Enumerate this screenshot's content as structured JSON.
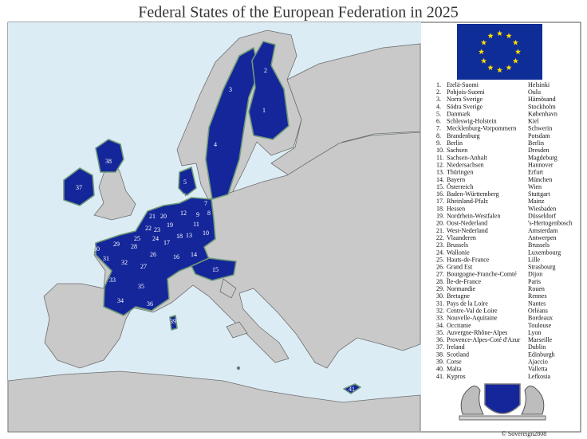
{
  "title": "Federal States of the European Federation in 2025",
  "states": [
    {
      "number": "1.",
      "name": "Etelä-Suomi",
      "capital": "Helsinki"
    },
    {
      "number": "2.",
      "name": "Pohjois-Suomi",
      "capital": "Oulu"
    },
    {
      "number": "3.",
      "name": "Norra Sverige",
      "capital": "Härnösand"
    },
    {
      "number": "4.",
      "name": "Södra Sverige",
      "capital": "Stockholm"
    },
    {
      "number": "5.",
      "name": "Danmark",
      "capital": "København"
    },
    {
      "number": "6.",
      "name": "Schleswig-Holstein",
      "capital": "Kiel"
    },
    {
      "number": "7.",
      "name": "Mecklenburg-Vorpommern",
      "capital": "Schwerin"
    },
    {
      "number": "8.",
      "name": "Brandenburg",
      "capital": "Potsdam"
    },
    {
      "number": "9.",
      "name": "Berlin",
      "capital": "Berlin"
    },
    {
      "number": "10.",
      "name": "Sachsen",
      "capital": "Dresden"
    },
    {
      "number": "11.",
      "name": "Sachsen-Anhalt",
      "capital": "Magdeburg"
    },
    {
      "number": "12.",
      "name": "Niedersachsen",
      "capital": "Hannover"
    },
    {
      "number": "13.",
      "name": "Thüringen",
      "capital": "Erfurt"
    },
    {
      "number": "14.",
      "name": "Bayern",
      "capital": "München"
    },
    {
      "number": "15.",
      "name": "Österreich",
      "capital": "Wien"
    },
    {
      "number": "16.",
      "name": "Baden-Württemberg",
      "capital": "Stuttgart"
    },
    {
      "number": "17.",
      "name": "Rheinland-Pfalz",
      "capital": "Mainz"
    },
    {
      "number": "18.",
      "name": "Hessen",
      "capital": "Wiesbaden"
    },
    {
      "number": "19.",
      "name": "Nordrhein-Westfalen",
      "capital": "Düsseldorf"
    },
    {
      "number": "20.",
      "name": "Oost-Nederland",
      "capital": "'s-Hertogenbosch"
    },
    {
      "number": "21.",
      "name": "West-Nederland",
      "capital": "Amsterdam"
    },
    {
      "number": "22.",
      "name": "Vlaanderen",
      "capital": "Antwerpen"
    },
    {
      "number": "23.",
      "name": "Brussels",
      "capital": "Brussels"
    },
    {
      "number": "24.",
      "name": "Wallonie",
      "capital": "Luxembourg"
    },
    {
      "number": "25.",
      "name": "Hauts-de-France",
      "capital": "Lille"
    },
    {
      "number": "26.",
      "name": "Grand Est",
      "capital": "Strasbourg"
    },
    {
      "number": "27.",
      "name": "Bourgogne-Franche-Comté",
      "capital": "Dijon"
    },
    {
      "number": "28.",
      "name": "Île-de-France",
      "capital": "Paris"
    },
    {
      "number": "29.",
      "name": "Normandie",
      "capital": "Rouen"
    },
    {
      "number": "30.",
      "name": "Bretagne",
      "capital": "Rennes"
    },
    {
      "number": "31.",
      "name": "Pays de la Loire",
      "capital": "Nantes"
    },
    {
      "number": "32.",
      "name": "Centre-Val de Loire",
      "capital": "Orléans"
    },
    {
      "number": "33.",
      "name": "Nouvelle-Aquitaine",
      "capital": "Bordeaux"
    },
    {
      "number": "34.",
      "name": "Occitanie",
      "capital": "Toulouse"
    },
    {
      "number": "35.",
      "name": "Auvergne-Rhône-Alpes",
      "capital": "Lyon"
    },
    {
      "number": "36.",
      "name": "Provence-Alpes-Coté d'Azur",
      "capital": "Marseille"
    },
    {
      "number": "37.",
      "name": "Ireland",
      "capital": "Dublin"
    },
    {
      "number": "38.",
      "name": "Scotland",
      "capital": "Edinburgh"
    },
    {
      "number": "39.",
      "name": "Corse",
      "capital": "Ajaccio"
    },
    {
      "number": "40.",
      "name": "Malta",
      "capital": "Valletta"
    },
    {
      "number": "41.",
      "name": "Kypros",
      "capital": "Lefkosia"
    }
  ],
  "map_labels": [
    "1",
    "2",
    "3",
    "4",
    "5",
    "6",
    "7",
    "8",
    "9",
    "10",
    "11",
    "12",
    "13",
    "14",
    "15",
    "16",
    "17",
    "18",
    "19",
    "20",
    "21",
    "22",
    "23",
    "24",
    "25",
    "26",
    "27",
    "28",
    "29",
    "30",
    "31",
    "32",
    "33",
    "34",
    "35",
    "36",
    "37",
    "38",
    "39",
    "41"
  ],
  "credit": "© Sovereign2808"
}
